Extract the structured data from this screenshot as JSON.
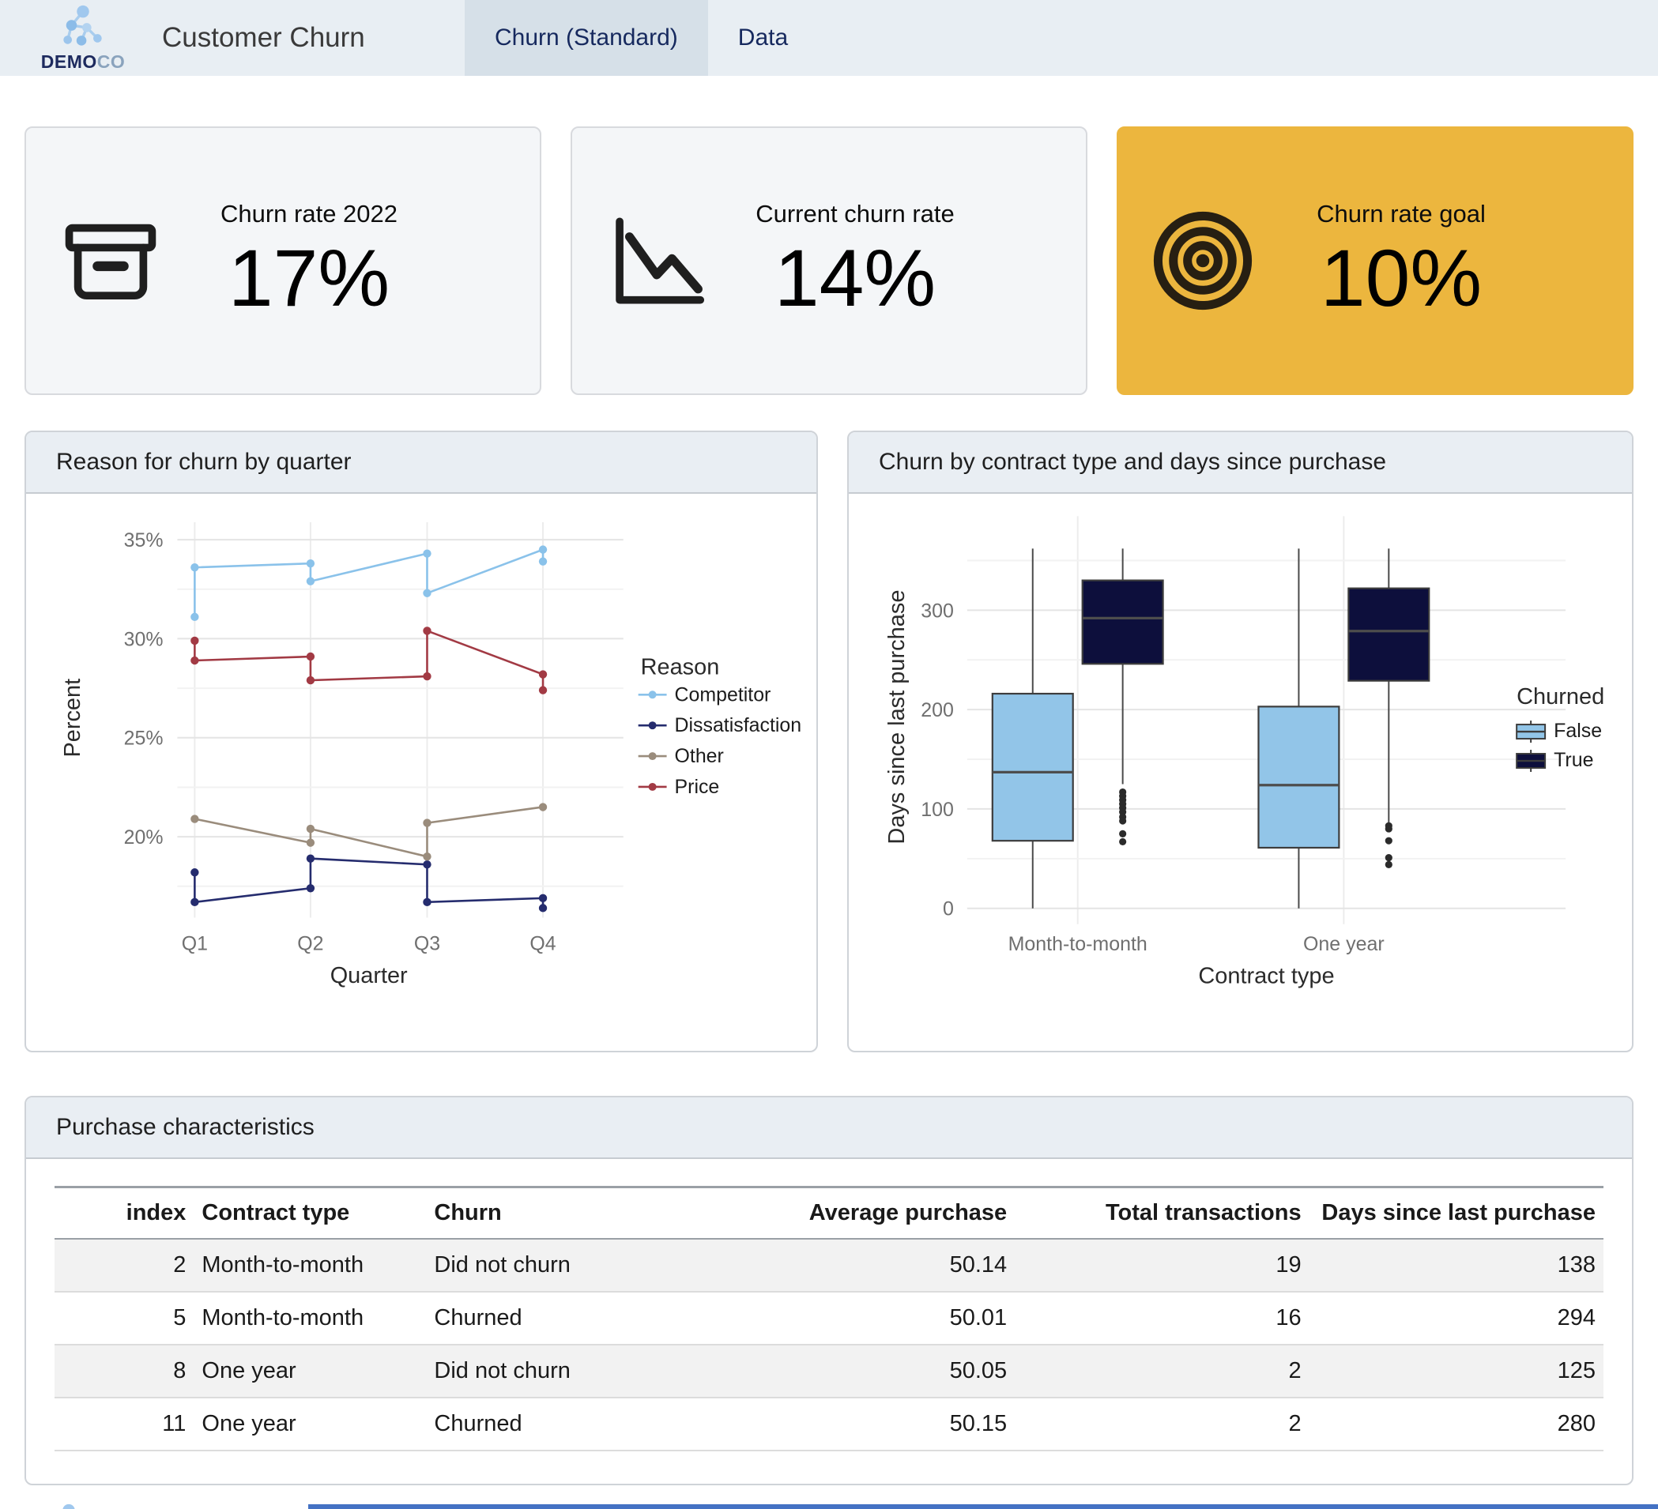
{
  "header": {
    "logo_bold": "DEMO",
    "logo_light": "CO",
    "title": "Customer Churn",
    "tabs": [
      {
        "label": "Churn (Standard)",
        "active": true
      },
      {
        "label": "Data",
        "active": false
      }
    ]
  },
  "kpis": [
    {
      "title": "Churn rate 2022",
      "value": "17%",
      "icon": "archive-box-icon"
    },
    {
      "title": "Current churn rate",
      "value": "14%",
      "icon": "trend-down-icon"
    },
    {
      "title": "Churn rate goal",
      "value": "10%",
      "icon": "target-icon",
      "accent_color": "#ecb63e"
    }
  ],
  "table": {
    "title": "Purchase characteristics",
    "columns": [
      "index",
      "Contract type",
      "Churn",
      "Average purchase",
      "Total transactions",
      "Days since last purchase"
    ],
    "rows": [
      [
        "2",
        "Month-to-month",
        "Did not churn",
        "50.14",
        "19",
        "138"
      ],
      [
        "5",
        "Month-to-month",
        "Churned",
        "50.01",
        "16",
        "294"
      ],
      [
        "8",
        "One year",
        "Did not churn",
        "50.05",
        "2",
        "125"
      ],
      [
        "11",
        "One year",
        "Churned",
        "50.15",
        "2",
        "280"
      ]
    ]
  },
  "chart_data": [
    {
      "type": "line",
      "title": "Reason for churn by quarter",
      "xlabel": "Quarter",
      "ylabel": "Percent",
      "categories": [
        "Q1",
        "Q2",
        "Q3",
        "Q4"
      ],
      "ylim": [
        15.6,
        36.4
      ],
      "yticks": [
        20,
        25,
        30,
        35
      ],
      "yticks_minor": [
        17.5,
        22.5,
        27.5,
        32.5
      ],
      "ytick_suffix": "%",
      "grid": true,
      "legend_title": "Reason",
      "legend_position": "right",
      "series": [
        {
          "name": "Competitor",
          "color": "#8ac2ea",
          "points": [
            [
              0,
              31.1
            ],
            [
              0,
              33.6
            ],
            [
              1,
              33.8
            ],
            [
              1,
              32.9
            ],
            [
              2,
              34.3
            ],
            [
              2,
              32.3
            ],
            [
              3,
              34.5
            ],
            [
              3,
              33.9
            ]
          ]
        },
        {
          "name": "Dissatisfaction",
          "color": "#252c6e",
          "points": [
            [
              0,
              18.2
            ],
            [
              0,
              16.7
            ],
            [
              1,
              17.4
            ],
            [
              1,
              18.9
            ],
            [
              2,
              18.6
            ],
            [
              2,
              16.7
            ],
            [
              3,
              16.9
            ],
            [
              3,
              16.4
            ]
          ]
        },
        {
          "name": "Other",
          "color": "#9a8c7c",
          "points": [
            [
              0,
              20.9
            ],
            [
              1,
              19.7
            ],
            [
              1,
              20.4
            ],
            [
              2,
              19.0
            ],
            [
              2,
              20.7
            ],
            [
              3,
              21.5
            ]
          ]
        },
        {
          "name": "Price",
          "color": "#a23a44",
          "points": [
            [
              0,
              29.9
            ],
            [
              0,
              28.9
            ],
            [
              1,
              29.1
            ],
            [
              1,
              27.9
            ],
            [
              2,
              28.1
            ],
            [
              2,
              30.4
            ],
            [
              3,
              28.2
            ],
            [
              3,
              27.4
            ]
          ]
        }
      ]
    },
    {
      "type": "boxplot",
      "title": "Churn by contract type and days since purchase",
      "xlabel": "Contract type",
      "ylabel": "Days since last purchase",
      "categories": [
        "Month-to-month",
        "One year"
      ],
      "ylim": [
        -12,
        397
      ],
      "yticks": [
        0,
        100,
        200,
        300
      ],
      "yticks_minor": [
        50,
        150,
        250,
        350
      ],
      "grid": true,
      "legend_title": "Churned",
      "legend_position": "right",
      "groups": [
        {
          "name": "False",
          "color": "#92c5e8",
          "boxes": [
            {
              "category": "Month-to-month",
              "whislo": 0,
              "q1": 68,
              "med": 137,
              "q3": 216,
              "whishi": 362,
              "outliers": []
            },
            {
              "category": "One year",
              "whislo": 0,
              "q1": 61,
              "med": 124,
              "q3": 203,
              "whishi": 362,
              "outliers": []
            }
          ]
        },
        {
          "name": "True",
          "color": "#0d0f3c",
          "boxes": [
            {
              "category": "Month-to-month",
              "whislo": 125,
              "q1": 246,
              "med": 292,
              "q3": 330,
              "whishi": 362,
              "outliers": [
                117,
                113,
                109,
                105,
                101,
                97,
                92,
                88,
                75,
                67
              ]
            },
            {
              "category": "One year",
              "whislo": 86,
              "q1": 229,
              "med": 279,
              "q3": 322,
              "whishi": 362,
              "outliers": [
                83,
                80,
                68,
                51,
                44
              ]
            }
          ]
        }
      ]
    }
  ]
}
